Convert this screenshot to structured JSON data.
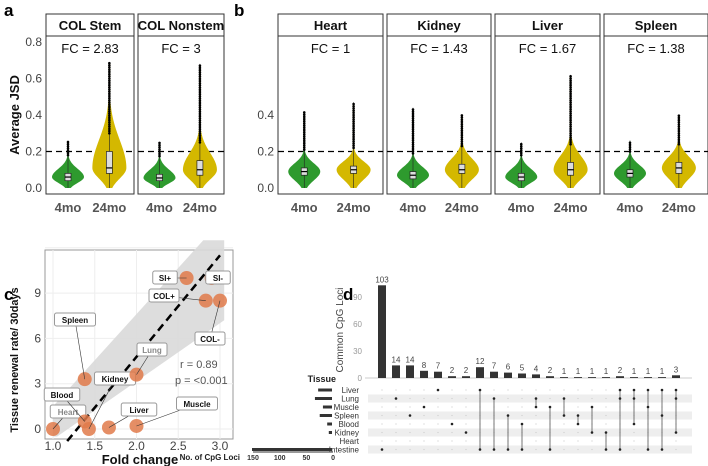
{
  "panels": {
    "a": "a",
    "b": "b",
    "c": "c",
    "d": "d"
  },
  "colors": {
    "young": "#2e9a2e",
    "old": "#d4b800",
    "point": "#e07a4a",
    "bar": "#333333",
    "band": "#d9d9d9"
  },
  "chart_data": [
    {
      "type": "violin",
      "panel": "a",
      "ylabel": "Average JSD",
      "ylim": [
        0,
        0.8
      ],
      "yticks": [
        "0.0",
        "0.2",
        "0.4",
        "0.6",
        "0.8"
      ],
      "threshold": 0.2,
      "facets": [
        {
          "name": "COL Stem",
          "fc": "FC = 2.83",
          "groups": [
            {
              "age": "4mo",
              "median": 0.06,
              "q1": 0.04,
              "q3": 0.08,
              "max": 0.26
            },
            {
              "age": "24mo",
              "median": 0.11,
              "q1": 0.08,
              "q3": 0.2,
              "max": 0.69
            }
          ]
        },
        {
          "name": "COL Nonstem",
          "fc": "FC = 3",
          "groups": [
            {
              "age": "4mo",
              "median": 0.055,
              "q1": 0.04,
              "q3": 0.075,
              "max": 0.25
            },
            {
              "age": "24mo",
              "median": 0.1,
              "q1": 0.07,
              "q3": 0.15,
              "max": 0.68
            }
          ]
        }
      ]
    },
    {
      "type": "violin",
      "panel": "b",
      "ylim": [
        0,
        0.8
      ],
      "yticks": [
        "0.0",
        "0.2",
        "0.4"
      ],
      "threshold": 0.2,
      "facets": [
        {
          "name": "Heart",
          "fc": "FC = 1",
          "groups": [
            {
              "age": "4mo",
              "median": 0.09,
              "q1": 0.07,
              "q3": 0.11,
              "max": 0.42
            },
            {
              "age": "24mo",
              "median": 0.1,
              "q1": 0.08,
              "q3": 0.12,
              "max": 0.47
            }
          ]
        },
        {
          "name": "Kidney",
          "fc": "FC = 1.43",
          "groups": [
            {
              "age": "4mo",
              "median": 0.07,
              "q1": 0.05,
              "q3": 0.09,
              "max": 0.44
            },
            {
              "age": "24mo",
              "median": 0.1,
              "q1": 0.08,
              "q3": 0.13,
              "max": 0.4
            }
          ]
        },
        {
          "name": "Liver",
          "fc": "FC = 1.67",
          "groups": [
            {
              "age": "4mo",
              "median": 0.06,
              "q1": 0.04,
              "q3": 0.08,
              "max": 0.25
            },
            {
              "age": "24mo",
              "median": 0.1,
              "q1": 0.07,
              "q3": 0.14,
              "max": 0.62
            }
          ]
        },
        {
          "name": "Spleen",
          "fc": "FC = 1.38",
          "groups": [
            {
              "age": "4mo",
              "median": 0.08,
              "q1": 0.06,
              "q3": 0.1,
              "max": 0.26
            },
            {
              "age": "24mo",
              "median": 0.11,
              "q1": 0.08,
              "q3": 0.14,
              "max": 0.4
            }
          ]
        }
      ]
    },
    {
      "type": "scatter",
      "panel": "c",
      "xlabel": "Fold change",
      "ylabel": "Tissue renewal rate/ 30days",
      "xlim": [
        0.95,
        3.05
      ],
      "ylim": [
        -0.7,
        12.5
      ],
      "xticks": [
        "1.0",
        "1.5",
        "2.0",
        "2.5",
        "3.0"
      ],
      "yticks": [
        "0",
        "3",
        "6",
        "9"
      ],
      "points": [
        {
          "label": "Heart",
          "x": 1.0,
          "y": 0
        },
        {
          "label": "Blood",
          "x": 1.38,
          "y": 0.5
        },
        {
          "label": "Spleen",
          "x": 1.38,
          "y": 3.3
        },
        {
          "label": "Kidney",
          "x": 1.43,
          "y": 0
        },
        {
          "label": "Liver",
          "x": 1.67,
          "y": 0.1
        },
        {
          "label": "Lung",
          "x": 2.0,
          "y": 3.6
        },
        {
          "label": "Muscle",
          "x": 2.0,
          "y": 0.2
        },
        {
          "label": "SI+",
          "x": 2.6,
          "y": 10
        },
        {
          "label": "SI-",
          "x": 2.9,
          "y": 10
        },
        {
          "label": "COL+",
          "x": 2.83,
          "y": 8.5
        },
        {
          "label": "COL-",
          "x": 3.0,
          "y": 8.5
        }
      ],
      "r": "r = 0.89",
      "p": "p = <0.001"
    },
    {
      "type": "upset",
      "panel": "d",
      "ylabel": "Common CpG Loci",
      "yticks": [
        "0",
        "30",
        "60",
        "90"
      ],
      "set_title": "Tissue",
      "set_axis_label": "No. of CpG Loci",
      "set_ticks": [
        "150",
        "100",
        "50",
        "0"
      ],
      "sets": [
        "Liver",
        "Lung",
        "Muscle",
        "Spleen",
        "Blood",
        "Kidney",
        "Heart",
        "Intestine"
      ],
      "set_sizes": [
        26,
        32,
        17,
        23,
        9,
        6,
        0,
        150
      ],
      "intersections": [
        {
          "size": 103,
          "sets": [
            7
          ]
        },
        {
          "size": 14,
          "sets": [
            1
          ]
        },
        {
          "size": 14,
          "sets": [
            3
          ]
        },
        {
          "size": 8,
          "sets": [
            2
          ]
        },
        {
          "size": 7,
          "sets": [
            0
          ]
        },
        {
          "size": 2,
          "sets": [
            4
          ]
        },
        {
          "size": 2,
          "sets": [
            5
          ]
        },
        {
          "size": 12,
          "sets": [
            0,
            7
          ]
        },
        {
          "size": 7,
          "sets": [
            1,
            7
          ]
        },
        {
          "size": 6,
          "sets": [
            3,
            7
          ]
        },
        {
          "size": 5,
          "sets": [
            4,
            7
          ]
        },
        {
          "size": 4,
          "sets": [
            1,
            2
          ]
        },
        {
          "size": 2,
          "sets": [
            2,
            7
          ]
        },
        {
          "size": 1,
          "sets": [
            1,
            3
          ]
        },
        {
          "size": 1,
          "sets": [
            3,
            4
          ]
        },
        {
          "size": 1,
          "sets": [
            2,
            5
          ]
        },
        {
          "size": 1,
          "sets": [
            5,
            7
          ]
        },
        {
          "size": 2,
          "sets": [
            0,
            1,
            7
          ]
        },
        {
          "size": 1,
          "sets": [
            0,
            1,
            4
          ]
        },
        {
          "size": 1,
          "sets": [
            0,
            2,
            7
          ]
        },
        {
          "size": 1,
          "sets": [
            0,
            3,
            7
          ]
        },
        {
          "size": 3,
          "sets": [
            0,
            1,
            5
          ]
        }
      ]
    }
  ]
}
